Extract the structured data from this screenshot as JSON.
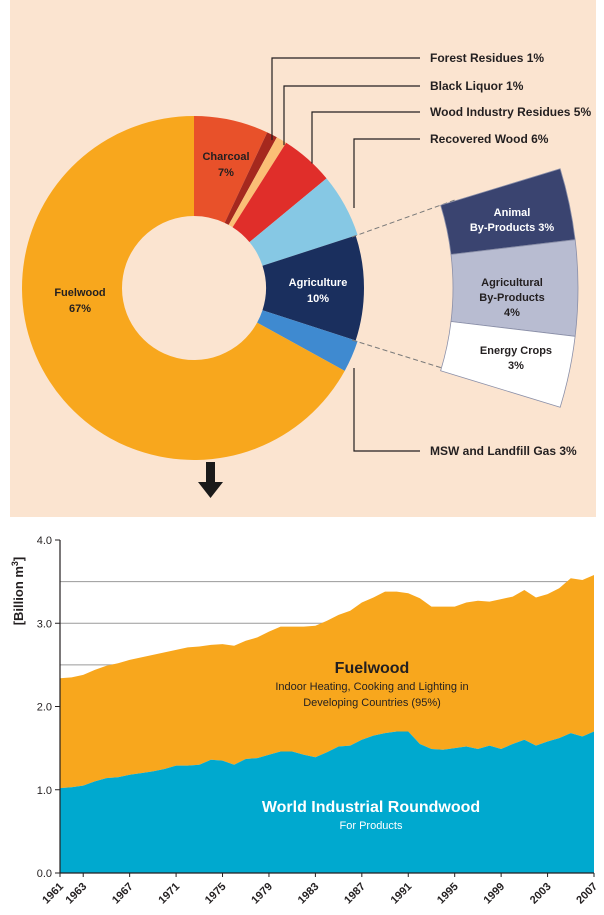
{
  "colors": {
    "panel_bg": "#fbe4d0",
    "fuelwood": "#f8a71d",
    "charcoal": "#e8512a",
    "forest_residues": "#a5281e",
    "black_liquor": "#fbbf76",
    "wood_industry": "#e02e2a",
    "recovered_wood": "#86c8e4",
    "agriculture": "#1a2f5e",
    "msw": "#3f8ad0",
    "animal": "#3a4470",
    "agri_byproducts": "#b8bcd1",
    "energy_crops": "#ffffff",
    "roundwood": "#00a9cf",
    "area_fuelwood": "#f8a71d",
    "arrow": "#1a1a1a"
  },
  "chart_data": [
    {
      "type": "pie",
      "slices": [
        {
          "name": "Fuelwood",
          "value": 67,
          "label": "Fuelwood",
          "pct": "67%",
          "color_key": "fuelwood"
        },
        {
          "name": "Charcoal",
          "value": 7,
          "label": "Charcoal",
          "pct": "7%",
          "color_key": "charcoal"
        },
        {
          "name": "Forest Residues",
          "value": 1,
          "label": "Forest Residues 1%",
          "color_key": "forest_residues"
        },
        {
          "name": "Black Liquor",
          "value": 1,
          "label": "Black Liquor 1%",
          "color_key": "black_liquor"
        },
        {
          "name": "Wood Industry Residues",
          "value": 5,
          "label": "Wood Industry Residues 5%",
          "color_key": "wood_industry"
        },
        {
          "name": "Recovered Wood",
          "value": 6,
          "label": "Recovered Wood 6%",
          "color_key": "recovered_wood"
        },
        {
          "name": "Agriculture",
          "value": 10,
          "label": "Agriculture",
          "pct": "10%",
          "color_key": "agriculture"
        },
        {
          "name": "MSW and Landfill Gas",
          "value": 3,
          "label": "MSW and Landfill Gas 3%",
          "color_key": "msw"
        }
      ],
      "agriculture_breakdown": [
        {
          "name": "Animal By-Products",
          "value": 3,
          "lines": [
            "Animal",
            "By-Products 3%"
          ],
          "color_key": "animal"
        },
        {
          "name": "Agricultural By-Products",
          "value": 4,
          "lines": [
            "Agricultural",
            "By-Products",
            "4%"
          ],
          "color_key": "agri_byproducts"
        },
        {
          "name": "Energy Crops",
          "value": 3,
          "lines": [
            "Energy Crops",
            "3%"
          ],
          "color_key": "energy_crops"
        }
      ]
    },
    {
      "type": "area",
      "ylabel": "[Billion m",
      "ylabel_sup": "3",
      "ylabel_end": "]",
      "ylim": [
        0,
        4.0
      ],
      "yticks": [
        0,
        1.0,
        2.0,
        3.0,
        4.0
      ],
      "ytick_labels": [
        "0.0",
        "1.0",
        "2.0",
        "3.0",
        "4.0"
      ],
      "gridlines": [
        2.5,
        3.0,
        3.5
      ],
      "xlim": [
        1961,
        2007
      ],
      "xtick_labels": [
        "1961",
        "1963",
        "1967",
        "1971",
        "1975",
        "1979",
        "1983",
        "1987",
        "1991",
        "1995",
        "1999",
        "2003",
        "2007"
      ],
      "x": [
        1961,
        1962,
        1963,
        1964,
        1965,
        1966,
        1967,
        1968,
        1969,
        1970,
        1971,
        1972,
        1973,
        1974,
        1975,
        1976,
        1977,
        1978,
        1979,
        1980,
        1981,
        1982,
        1983,
        1984,
        1985,
        1986,
        1987,
        1988,
        1989,
        1990,
        1991,
        1992,
        1993,
        1994,
        1995,
        1996,
        1997,
        1998,
        1999,
        2000,
        2001,
        2002,
        2003,
        2004,
        2005,
        2006,
        2007
      ],
      "series": [
        {
          "name": "World Industrial Roundwood",
          "values": [
            1.02,
            1.03,
            1.05,
            1.1,
            1.14,
            1.15,
            1.18,
            1.2,
            1.22,
            1.25,
            1.29,
            1.29,
            1.3,
            1.36,
            1.35,
            1.3,
            1.37,
            1.38,
            1.42,
            1.46,
            1.46,
            1.42,
            1.39,
            1.45,
            1.52,
            1.53,
            1.6,
            1.65,
            1.68,
            1.7,
            1.7,
            1.55,
            1.49,
            1.48,
            1.5,
            1.52,
            1.49,
            1.53,
            1.49,
            1.55,
            1.6,
            1.53,
            1.58,
            1.62,
            1.68,
            1.64,
            1.7
          ]
        },
        {
          "name": "Fuelwood",
          "values": [
            1.32,
            1.32,
            1.33,
            1.34,
            1.35,
            1.37,
            1.38,
            1.39,
            1.4,
            1.4,
            1.39,
            1.42,
            1.42,
            1.38,
            1.4,
            1.43,
            1.42,
            1.45,
            1.48,
            1.5,
            1.5,
            1.54,
            1.58,
            1.58,
            1.58,
            1.62,
            1.65,
            1.66,
            1.7,
            1.68,
            1.66,
            1.75,
            1.71,
            1.72,
            1.7,
            1.73,
            1.78,
            1.73,
            1.8,
            1.77,
            1.8,
            1.78,
            1.77,
            1.8,
            1.86,
            1.88,
            1.88
          ]
        }
      ],
      "annotations": {
        "fuelwood_title": "Fuelwood",
        "fuelwood_line1": "Indoor Heating, Cooking and Lighting in",
        "fuelwood_line2": "Developing Countries (95%)",
        "roundwood_title": "World Industrial Roundwood",
        "roundwood_sub": "For Products"
      }
    }
  ]
}
